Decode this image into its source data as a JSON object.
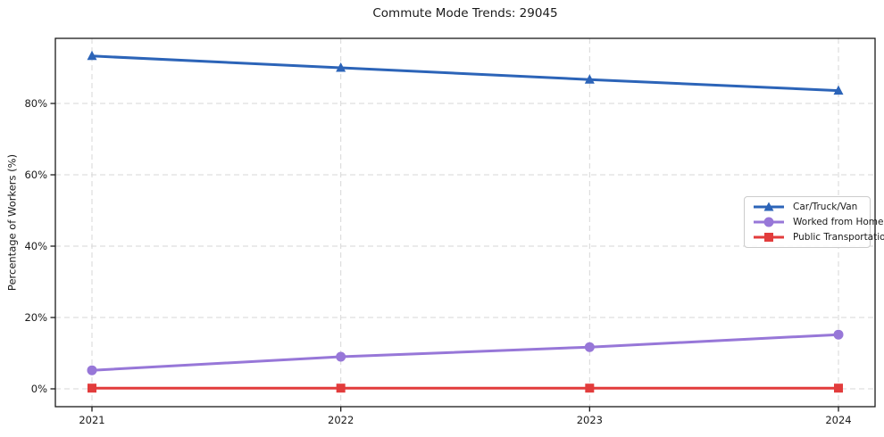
{
  "title": "Commute Mode Trends: 29045",
  "chart_data": {
    "type": "line",
    "title": "Commute Mode Trends: 29045",
    "xlabel": "",
    "ylabel": "Percentage of Workers (%)",
    "categories": [
      "2021",
      "2022",
      "2023",
      "2024"
    ],
    "series": [
      {
        "name": "Car/Truck/Van",
        "marker": "triangle",
        "color": "#2c64b8",
        "values": [
          93.3,
          90.0,
          86.7,
          83.6
        ]
      },
      {
        "name": "Worked from Home",
        "marker": "circle",
        "color": "#9777d8",
        "values": [
          5.2,
          9.0,
          11.7,
          15.2
        ]
      },
      {
        "name": "Public Transportation",
        "marker": "square",
        "color": "#e23c3c",
        "values": [
          0.2,
          0.2,
          0.2,
          0.2
        ]
      }
    ],
    "y_ticks": {
      "values": [
        0,
        20,
        40,
        60,
        80
      ],
      "labels": [
        "0%",
        "20%",
        "40%",
        "60%",
        "80%"
      ]
    },
    "ylim": [
      -5,
      98.25
    ],
    "grid": true,
    "grid_style": "dashed",
    "legend_position": "center right"
  },
  "colors": {
    "grid": "#d7d7d7",
    "spine": "#1a1a1a",
    "text": "#1a1a1a",
    "background": "#ffffff",
    "legend_border": "#cccccc"
  }
}
